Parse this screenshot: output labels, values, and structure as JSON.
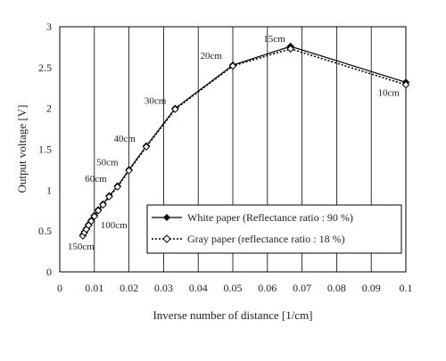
{
  "chart_data": {
    "type": "line",
    "title": "",
    "xlabel": "Inverse number of distance [1/cm]",
    "ylabel": "Output voltage [V]",
    "xlim": [
      0,
      0.1
    ],
    "ylim": [
      0,
      3
    ],
    "x_ticks": [
      "0",
      "0.01",
      "0.02",
      "0.03",
      "0.04",
      "0.05",
      "0.06",
      "0.07",
      "0.08",
      "0.09",
      "0.1"
    ],
    "y_ticks": [
      "0",
      "0.5",
      "1",
      "1.5",
      "2",
      "2.5",
      "3"
    ],
    "grid": "vertical",
    "legend_position": "bottom-right",
    "series": [
      {
        "name": "White paper (Reflectance ratio : 90 %)",
        "style": "solid",
        "marker": "filled-diamond",
        "color": "#000000",
        "x": [
          0.00667,
          0.00714,
          0.00769,
          0.00833,
          0.00909,
          0.01,
          0.01111,
          0.0125,
          0.01429,
          0.01667,
          0.02,
          0.025,
          0.03333,
          0.05,
          0.06667,
          0.1
        ],
        "y": [
          0.45,
          0.49,
          0.53,
          0.58,
          0.63,
          0.69,
          0.76,
          0.83,
          0.93,
          1.05,
          1.25,
          1.54,
          2.0,
          2.53,
          2.76,
          2.32
        ]
      },
      {
        "name": "Gray paper (reflectance ratio : 18 %)",
        "style": "dotted",
        "marker": "open-diamond",
        "color": "#000000",
        "x": [
          0.00667,
          0.00714,
          0.00769,
          0.00833,
          0.00909,
          0.01,
          0.01111,
          0.0125,
          0.01429,
          0.01667,
          0.02,
          0.025,
          0.03333,
          0.05,
          0.06667,
          0.1
        ],
        "y": [
          0.44,
          0.48,
          0.52,
          0.57,
          0.62,
          0.68,
          0.75,
          0.82,
          0.92,
          1.04,
          1.24,
          1.53,
          1.99,
          2.52,
          2.73,
          2.29
        ]
      }
    ],
    "annotations": [
      {
        "text": "150cm",
        "x": 0.00667,
        "y": 0.45
      },
      {
        "text": "100cm",
        "x": 0.01,
        "y": 0.69
      },
      {
        "text": "60cm",
        "x": 0.01667,
        "y": 1.05
      },
      {
        "text": "50cm",
        "x": 0.02,
        "y": 1.25
      },
      {
        "text": "40cm",
        "x": 0.025,
        "y": 1.54
      },
      {
        "text": "30cm",
        "x": 0.03333,
        "y": 2.0
      },
      {
        "text": "20cm",
        "x": 0.05,
        "y": 2.53
      },
      {
        "text": "15cm",
        "x": 0.06667,
        "y": 2.76
      },
      {
        "text": "10cm",
        "x": 0.1,
        "y": 2.32
      }
    ]
  }
}
